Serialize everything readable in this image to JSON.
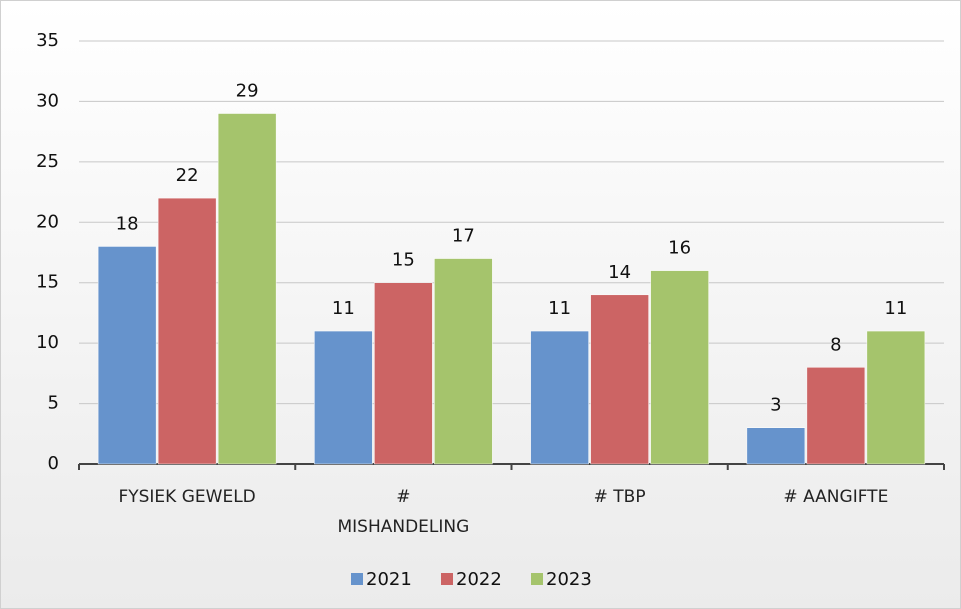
{
  "chart_data": {
    "type": "bar",
    "categories": [
      "FYSIEK GEWELD",
      "# MISHANDELING",
      "# TBP",
      "# AANGIFTE"
    ],
    "series": [
      {
        "name": "2021",
        "color": "#6693cc",
        "values": [
          18,
          11,
          11,
          3
        ]
      },
      {
        "name": "2022",
        "color": "#cc6464",
        "values": [
          22,
          15,
          14,
          8
        ]
      },
      {
        "name": "2023",
        "color": "#a5c46c",
        "values": [
          29,
          17,
          16,
          11
        ]
      }
    ],
    "ylim": [
      0,
      35
    ],
    "yticks": [
      0,
      5,
      10,
      15,
      20,
      25,
      30,
      35
    ],
    "grid": true,
    "legend": "bottom"
  }
}
